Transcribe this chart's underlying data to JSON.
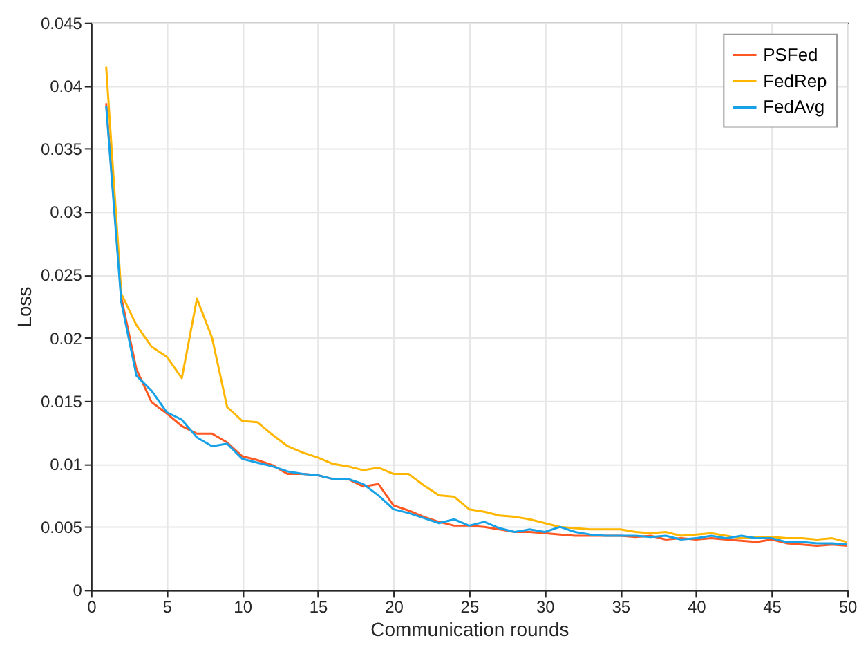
{
  "chart_data": {
    "type": "line",
    "xlabel": "Communication rounds",
    "ylabel": "Loss",
    "x": [
      1,
      2,
      3,
      4,
      5,
      6,
      7,
      8,
      9,
      10,
      11,
      12,
      13,
      14,
      15,
      16,
      17,
      18,
      19,
      20,
      21,
      22,
      23,
      24,
      25,
      26,
      27,
      28,
      29,
      30,
      31,
      32,
      33,
      34,
      35,
      36,
      37,
      38,
      39,
      40,
      41,
      42,
      43,
      44,
      45,
      46,
      47,
      48,
      49,
      50
    ],
    "series": [
      {
        "name": "PSFed",
        "color": "#ff5722",
        "values": [
          0.0386,
          0.0232,
          0.0175,
          0.0149,
          0.014,
          0.013,
          0.0124,
          0.0124,
          0.0117,
          0.0106,
          0.0103,
          0.0099,
          0.0092,
          0.0092,
          0.0091,
          0.0088,
          0.0088,
          0.0082,
          0.0084,
          0.0067,
          0.0063,
          0.0058,
          0.0054,
          0.0051,
          0.0051,
          0.005,
          0.0048,
          0.0046,
          0.0046,
          0.0045,
          0.0044,
          0.0043,
          0.0043,
          0.0043,
          0.0043,
          0.0042,
          0.0043,
          0.004,
          0.0041,
          0.004,
          0.0041,
          0.004,
          0.0039,
          0.0038,
          0.004,
          0.0037,
          0.0036,
          0.0035,
          0.0036,
          0.0035
        ]
      },
      {
        "name": "FedRep",
        "color": "#ffb600",
        "values": [
          0.0415,
          0.0235,
          0.021,
          0.0193,
          0.0185,
          0.0168,
          0.0231,
          0.02,
          0.0145,
          0.0134,
          0.0133,
          0.0123,
          0.0114,
          0.0109,
          0.0105,
          0.01,
          0.0098,
          0.0095,
          0.0097,
          0.0092,
          0.0092,
          0.0083,
          0.0075,
          0.0074,
          0.0064,
          0.0062,
          0.0059,
          0.0058,
          0.0056,
          0.0053,
          0.005,
          0.0049,
          0.0048,
          0.0048,
          0.0048,
          0.0046,
          0.0045,
          0.0046,
          0.0043,
          0.0044,
          0.0045,
          0.0043,
          0.0041,
          0.0042,
          0.0042,
          0.0041,
          0.0041,
          0.004,
          0.0041,
          0.0038
        ]
      },
      {
        "name": "FedAvg",
        "color": "#17a2e8",
        "values": [
          0.0384,
          0.0228,
          0.017,
          0.0158,
          0.0141,
          0.0135,
          0.0121,
          0.0114,
          0.0116,
          0.0104,
          0.0101,
          0.0098,
          0.0094,
          0.0092,
          0.0091,
          0.0088,
          0.0088,
          0.0084,
          0.0075,
          0.0064,
          0.0061,
          0.0057,
          0.0053,
          0.0056,
          0.0051,
          0.0054,
          0.0049,
          0.0046,
          0.0048,
          0.0046,
          0.005,
          0.0046,
          0.0044,
          0.0043,
          0.0043,
          0.0043,
          0.0042,
          0.0043,
          0.004,
          0.0041,
          0.0043,
          0.0041,
          0.0043,
          0.0041,
          0.0041,
          0.0038,
          0.0038,
          0.0037,
          0.0037,
          0.0036
        ]
      }
    ],
    "xlim": [
      0,
      50
    ],
    "xticks": [
      0,
      5,
      10,
      15,
      20,
      25,
      30,
      35,
      40,
      45,
      50
    ],
    "ylim": [
      0,
      0.045
    ],
    "yticks": [
      0,
      0.005,
      0.01,
      0.015,
      0.02,
      0.025,
      0.03,
      0.035,
      0.04,
      0.045
    ],
    "grid": true,
    "legend": "top right",
    "line_style": "solid",
    "marker": "none"
  }
}
